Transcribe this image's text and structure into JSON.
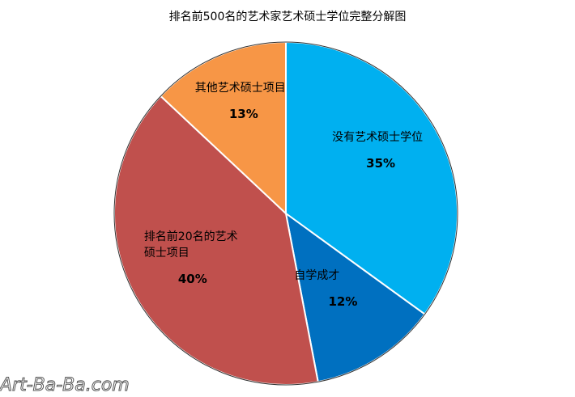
{
  "chart_data": {
    "type": "pie",
    "title": "排名前500名的艺术家艺术硕士学位完整分解图",
    "categories": [
      "没有艺术硕士学位",
      "自学成才",
      "排名前20名的艺术硕士项目",
      "其他艺术硕士项目"
    ],
    "values": [
      35,
      12,
      40,
      13
    ],
    "value_labels": [
      "35%",
      "12%",
      "40%",
      "13%"
    ],
    "colors": [
      "#00b0f0",
      "#0070c0",
      "#c0504d",
      "#f79646"
    ]
  },
  "watermark": "Art-Ba-Ba.com"
}
